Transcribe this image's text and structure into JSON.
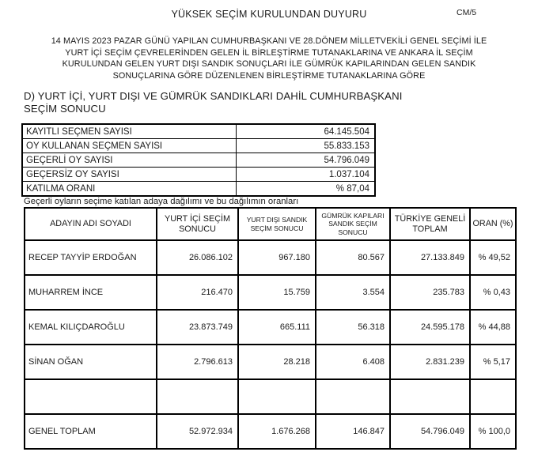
{
  "page": {
    "doc_code": "CM/5",
    "title": "YÜKSEK SEÇİM KURULUNDAN DUYURU",
    "intro_lines": [
      "14 MAYIS 2023  PAZAR GÜNÜ YAPILAN CUMHURBAŞKANI VE 28.DÖNEM MİLLETVEKİLİ GENEL SEÇİMİ İLE",
      "YURT İÇİ SEÇİM ÇEVRELERİNDEN GELEN İL BİRLEŞTİRME TUTANAKLARINA VE ANKARA İL SEÇİM",
      "KURULUNDAN GELEN YURT DIŞI SANDIK SONUÇLARI İLE GÜMRÜK  KAPILARINDAN GELEN SANDIK",
      "SONUÇLARINA GÖRE DÜZENLENEN BİRLEŞTİRME TUTANAKLARINA GÖRE"
    ],
    "section_heading_lines": [
      "D) YURT İÇİ, YURT DIŞI VE GÜMRÜK SANDIKLARI DAHİL CUMHURBAŞKANI",
      "SEÇİM SONUCU"
    ],
    "note": "Geçerli oyların seçime katılan adaya dağılımı ve bu dağılımın oranları"
  },
  "summary_table": {
    "rows": [
      {
        "label": "KAYITLI SEÇMEN SAYISI",
        "value": "64.145.504"
      },
      {
        "label": "OY KULLANAN SEÇMEN SAYISI",
        "value": "55.833.153"
      },
      {
        "label": "GEÇERLİ OY SAYISI",
        "value": "54.796.049"
      },
      {
        "label": "GEÇERSİZ OY SAYISI",
        "value": "1.037.104"
      },
      {
        "label": "KATILMA ORANI",
        "value": "% 87,04"
      }
    ]
  },
  "main_table": {
    "headers": [
      "ADAYIN ADI SOYADI",
      "YURT İÇİ SEÇİM SONUCU",
      "YURT DIŞI SANDIK SEÇİM SONUCU",
      "GÜMRÜK KAPILARI SANDIK SEÇİM SONUCU",
      "TÜRKİYE GENELİ TOPLAM",
      "ORAN (%)"
    ],
    "rows": [
      [
        "RECEP TAYYİP ERDOĞAN",
        "26.086.102",
        "967.180",
        "80.567",
        "27.133.849",
        "% 49,52"
      ],
      [
        "MUHARREM İNCE",
        "216.470",
        "15.759",
        "3.554",
        "235.783",
        "% 0,43"
      ],
      [
        "KEMAL KILIÇDAROĞLU",
        "23.873.749",
        "665.111",
        "56.318",
        "24.595.178",
        "% 44,88"
      ],
      [
        "SİNAN OĞAN",
        "2.796.613",
        "28.218",
        "6.408",
        "2.831.239",
        "% 5,17"
      ],
      [
        "",
        "",
        "",
        "",
        "",
        ""
      ],
      [
        "GENEL TOPLAM",
        "52.972.934",
        "1.676.268",
        "146.847",
        "54.796.049",
        "% 100,0"
      ]
    ]
  },
  "colors": {
    "text": "#1b1b1b",
    "border": "#000000",
    "background": "#ffffff"
  }
}
